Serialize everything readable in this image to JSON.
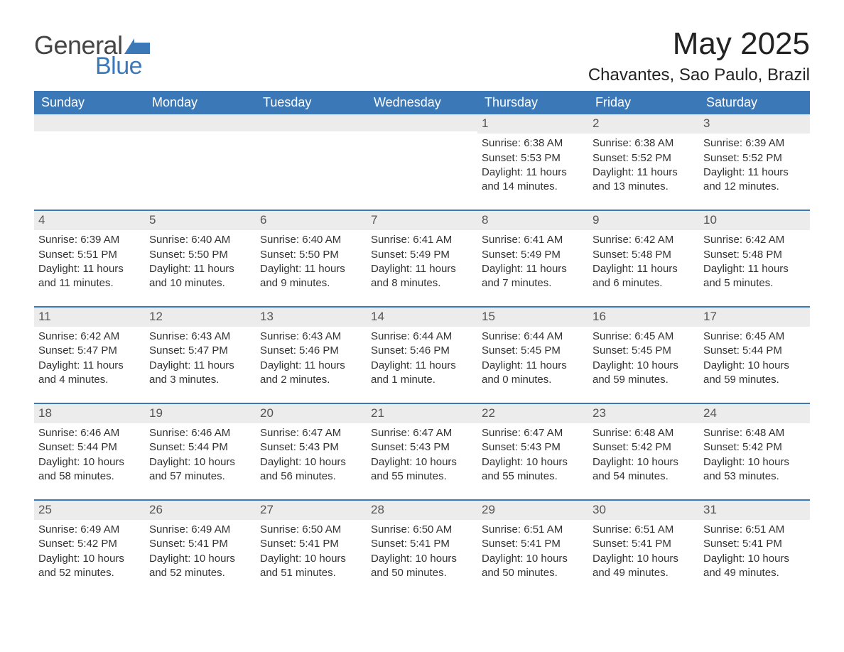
{
  "brand": {
    "word1": "General",
    "word2": "Blue",
    "flag_color": "#3b78b8"
  },
  "title": "May 2025",
  "location": "Chavantes, Sao Paulo, Brazil",
  "colors": {
    "header_bg": "#3b78b8",
    "header_text": "#ffffff",
    "daynum_bg": "#ececec",
    "daynum_text": "#555555",
    "body_text": "#333333",
    "page_bg": "#ffffff"
  },
  "weekday_labels": [
    "Sunday",
    "Monday",
    "Tuesday",
    "Wednesday",
    "Thursday",
    "Friday",
    "Saturday"
  ],
  "field_labels": {
    "sunrise": "Sunrise",
    "sunset": "Sunset",
    "daylight": "Daylight"
  },
  "weeks": [
    [
      null,
      null,
      null,
      null,
      {
        "day": 1,
        "sunrise": "6:38 AM",
        "sunset": "5:53 PM",
        "daylight": "11 hours and 14 minutes."
      },
      {
        "day": 2,
        "sunrise": "6:38 AM",
        "sunset": "5:52 PM",
        "daylight": "11 hours and 13 minutes."
      },
      {
        "day": 3,
        "sunrise": "6:39 AM",
        "sunset": "5:52 PM",
        "daylight": "11 hours and 12 minutes."
      }
    ],
    [
      {
        "day": 4,
        "sunrise": "6:39 AM",
        "sunset": "5:51 PM",
        "daylight": "11 hours and 11 minutes."
      },
      {
        "day": 5,
        "sunrise": "6:40 AM",
        "sunset": "5:50 PM",
        "daylight": "11 hours and 10 minutes."
      },
      {
        "day": 6,
        "sunrise": "6:40 AM",
        "sunset": "5:50 PM",
        "daylight": "11 hours and 9 minutes."
      },
      {
        "day": 7,
        "sunrise": "6:41 AM",
        "sunset": "5:49 PM",
        "daylight": "11 hours and 8 minutes."
      },
      {
        "day": 8,
        "sunrise": "6:41 AM",
        "sunset": "5:49 PM",
        "daylight": "11 hours and 7 minutes."
      },
      {
        "day": 9,
        "sunrise": "6:42 AM",
        "sunset": "5:48 PM",
        "daylight": "11 hours and 6 minutes."
      },
      {
        "day": 10,
        "sunrise": "6:42 AM",
        "sunset": "5:48 PM",
        "daylight": "11 hours and 5 minutes."
      }
    ],
    [
      {
        "day": 11,
        "sunrise": "6:42 AM",
        "sunset": "5:47 PM",
        "daylight": "11 hours and 4 minutes."
      },
      {
        "day": 12,
        "sunrise": "6:43 AM",
        "sunset": "5:47 PM",
        "daylight": "11 hours and 3 minutes."
      },
      {
        "day": 13,
        "sunrise": "6:43 AM",
        "sunset": "5:46 PM",
        "daylight": "11 hours and 2 minutes."
      },
      {
        "day": 14,
        "sunrise": "6:44 AM",
        "sunset": "5:46 PM",
        "daylight": "11 hours and 1 minute."
      },
      {
        "day": 15,
        "sunrise": "6:44 AM",
        "sunset": "5:45 PM",
        "daylight": "11 hours and 0 minutes."
      },
      {
        "day": 16,
        "sunrise": "6:45 AM",
        "sunset": "5:45 PM",
        "daylight": "10 hours and 59 minutes."
      },
      {
        "day": 17,
        "sunrise": "6:45 AM",
        "sunset": "5:44 PM",
        "daylight": "10 hours and 59 minutes."
      }
    ],
    [
      {
        "day": 18,
        "sunrise": "6:46 AM",
        "sunset": "5:44 PM",
        "daylight": "10 hours and 58 minutes."
      },
      {
        "day": 19,
        "sunrise": "6:46 AM",
        "sunset": "5:44 PM",
        "daylight": "10 hours and 57 minutes."
      },
      {
        "day": 20,
        "sunrise": "6:47 AM",
        "sunset": "5:43 PM",
        "daylight": "10 hours and 56 minutes."
      },
      {
        "day": 21,
        "sunrise": "6:47 AM",
        "sunset": "5:43 PM",
        "daylight": "10 hours and 55 minutes."
      },
      {
        "day": 22,
        "sunrise": "6:47 AM",
        "sunset": "5:43 PM",
        "daylight": "10 hours and 55 minutes."
      },
      {
        "day": 23,
        "sunrise": "6:48 AM",
        "sunset": "5:42 PM",
        "daylight": "10 hours and 54 minutes."
      },
      {
        "day": 24,
        "sunrise": "6:48 AM",
        "sunset": "5:42 PM",
        "daylight": "10 hours and 53 minutes."
      }
    ],
    [
      {
        "day": 25,
        "sunrise": "6:49 AM",
        "sunset": "5:42 PM",
        "daylight": "10 hours and 52 minutes."
      },
      {
        "day": 26,
        "sunrise": "6:49 AM",
        "sunset": "5:41 PM",
        "daylight": "10 hours and 52 minutes."
      },
      {
        "day": 27,
        "sunrise": "6:50 AM",
        "sunset": "5:41 PM",
        "daylight": "10 hours and 51 minutes."
      },
      {
        "day": 28,
        "sunrise": "6:50 AM",
        "sunset": "5:41 PM",
        "daylight": "10 hours and 50 minutes."
      },
      {
        "day": 29,
        "sunrise": "6:51 AM",
        "sunset": "5:41 PM",
        "daylight": "10 hours and 50 minutes."
      },
      {
        "day": 30,
        "sunrise": "6:51 AM",
        "sunset": "5:41 PM",
        "daylight": "10 hours and 49 minutes."
      },
      {
        "day": 31,
        "sunrise": "6:51 AM",
        "sunset": "5:41 PM",
        "daylight": "10 hours and 49 minutes."
      }
    ]
  ]
}
